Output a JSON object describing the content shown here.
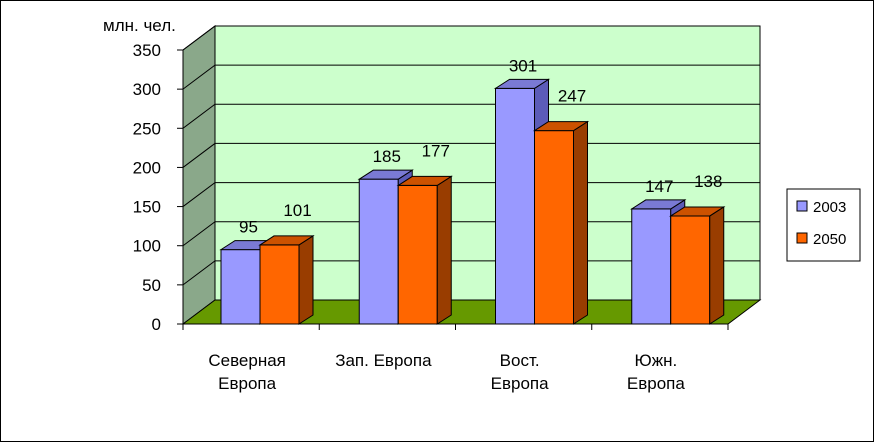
{
  "chart_data": {
    "type": "bar",
    "title": "",
    "ylabel": "млн. чел.",
    "xlabel": "",
    "ylim": [
      0,
      350
    ],
    "yticks": [
      0,
      50,
      100,
      150,
      200,
      250,
      300,
      350
    ],
    "categories": [
      [
        "Северная",
        "Европа"
      ],
      [
        "Зап. Европа"
      ],
      [
        "Вост.",
        "Европа"
      ],
      [
        "Южн.",
        "Европа"
      ]
    ],
    "series": [
      {
        "name": "2003",
        "values": [
          95,
          185,
          301,
          147
        ],
        "color": "#9999ff",
        "side_color": "#5c5cb8",
        "top_color": "#7a7ad4"
      },
      {
        "name": "2050",
        "values": [
          101,
          177,
          247,
          138
        ],
        "color": "#ff6600",
        "side_color": "#993d00",
        "top_color": "#cc5200"
      }
    ],
    "grid": true,
    "wall_color": "#ccffcc",
    "side_wall_color": "#8aa88a",
    "floor_color": "#669900",
    "legend_position": "right"
  }
}
